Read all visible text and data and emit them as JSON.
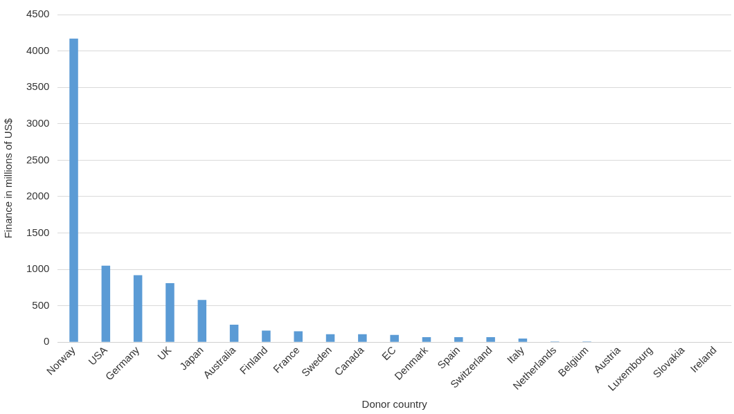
{
  "chart_data": {
    "type": "bar",
    "xlabel": "Donor country",
    "ylabel": "Finance in millions of US$",
    "categories": [
      "Norway",
      "USA",
      "Germany",
      "UK",
      "Japan",
      "Australia",
      "Finland",
      "France",
      "Sweden",
      "Canada",
      "EC",
      "Denmark",
      "Spain",
      "Switzerland",
      "Italy",
      "Netherlands",
      "Belgium",
      "Austria",
      "Luxembourg",
      "Slovakia",
      "Ireland"
    ],
    "values": [
      4170,
      1050,
      920,
      810,
      580,
      240,
      160,
      150,
      110,
      110,
      100,
      70,
      70,
      70,
      50,
      10,
      10,
      0,
      0,
      0,
      0
    ],
    "color": "#5b9bd5",
    "ylim": [
      0,
      4500
    ],
    "yticks": [
      0,
      500,
      1000,
      1500,
      2000,
      2500,
      3000,
      3500,
      4000,
      4500
    ],
    "grid": "y"
  }
}
